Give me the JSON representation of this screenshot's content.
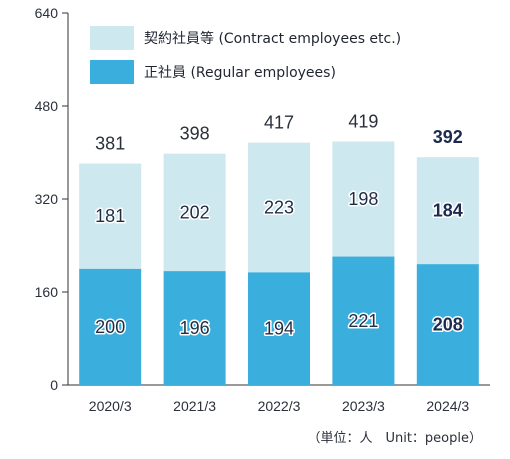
{
  "chart_data": {
    "type": "bar",
    "stacked": true,
    "categories": [
      "2020/3",
      "2021/3",
      "2022/3",
      "2023/3",
      "2024/3"
    ],
    "series": [
      {
        "name": "正社員 (Regular employees)",
        "values": [
          200,
          196,
          194,
          221,
          208
        ],
        "color": "#3aaedc"
      },
      {
        "name": "契約社員等 (Contract employees etc.)",
        "values": [
          181,
          202,
          223,
          198,
          184
        ],
        "color": "#cde8ef"
      }
    ],
    "totals": [
      381,
      398,
      417,
      419,
      392
    ],
    "highlight_index": 4,
    "ylim": [
      0,
      640
    ],
    "yticks": [
      0,
      160,
      320,
      480,
      640
    ],
    "legend_position": "top-left",
    "unit_note": "（単位：人　Unit：people）"
  }
}
